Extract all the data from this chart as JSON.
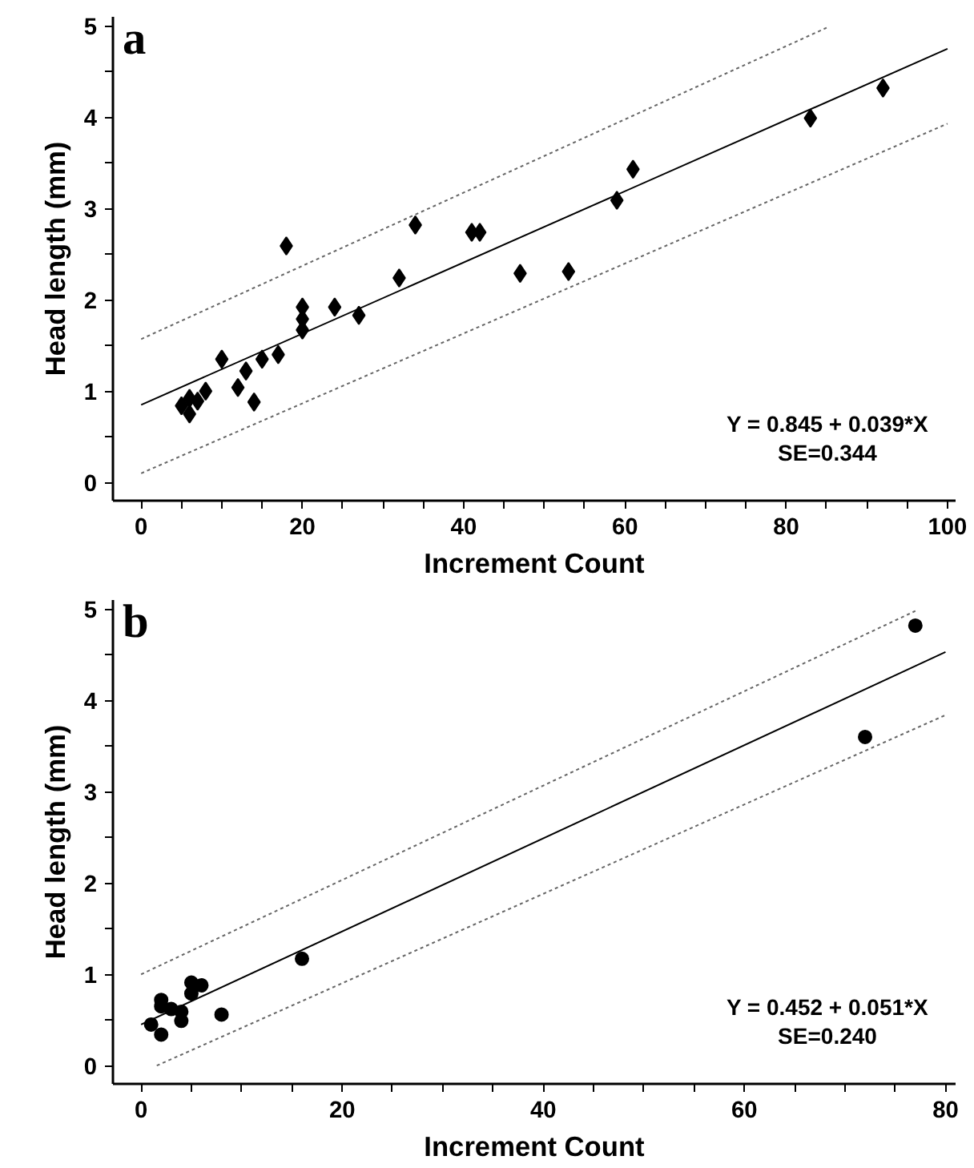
{
  "chart_data": [
    {
      "type": "scatter",
      "title": "a",
      "xlabel": "Increment Count",
      "ylabel": "Head length (mm)",
      "annotations": [
        "Y = 0.845 + 0.039*X",
        "SE=0.344"
      ],
      "xlim": [
        -3.5,
        101
      ],
      "ylim": [
        -0.2,
        5.1
      ],
      "grid": false,
      "xticks": [
        0,
        {
          "value": 5,
          "label": null
        },
        {
          "value": 10,
          "label": null
        },
        {
          "value": 15,
          "label": null
        },
        20,
        {
          "value": 25,
          "label": null
        },
        {
          "value": 30,
          "label": null
        },
        {
          "value": 35,
          "label": null
        },
        40,
        {
          "value": 45,
          "label": null
        },
        {
          "value": 50,
          "label": null
        },
        {
          "value": 55,
          "label": null
        },
        60,
        {
          "value": 65,
          "label": null
        },
        {
          "value": 70,
          "label": null
        },
        {
          "value": 75,
          "label": null
        },
        80,
        {
          "value": 85,
          "label": null
        },
        {
          "value": 90,
          "label": null
        },
        {
          "value": 95,
          "label": null
        },
        100
      ],
      "yticks": [
        0,
        {
          "value": 0.5,
          "label": null
        },
        1,
        {
          "value": 1.5,
          "label": null
        },
        2,
        {
          "value": 2.5,
          "label": null
        },
        3,
        {
          "value": 3.5,
          "label": null
        },
        4,
        {
          "value": 4.5,
          "label": null
        },
        5
      ],
      "series": [
        {
          "marker": "diamond",
          "color": "#000000",
          "x": [
            5,
            6,
            6,
            7,
            8,
            10,
            12,
            13,
            14,
            15,
            17,
            18,
            20,
            20,
            20,
            24,
            27,
            32,
            34,
            41,
            42,
            47,
            53,
            59,
            61,
            83,
            92
          ],
          "values": [
            0.84,
            0.92,
            0.75,
            0.89,
            1.0,
            1.35,
            1.04,
            1.22,
            0.88,
            1.35,
            1.4,
            2.59,
            1.92,
            1.79,
            1.67,
            1.92,
            1.83,
            2.24,
            2.82,
            2.74,
            2.74,
            2.29,
            2.31,
            3.09,
            3.43,
            3.99,
            4.32
          ]
        },
        {
          "type": "line",
          "line_style": "solid",
          "color": "#000000",
          "x": [
            0,
            100
          ],
          "values": [
            0.85,
            4.75
          ]
        },
        {
          "type": "line",
          "line_style": "dotted",
          "color": "#666666",
          "x": [
            0,
            85
          ],
          "values": [
            1.57,
            4.98
          ]
        },
        {
          "type": "line",
          "line_style": "dotted",
          "color": "#666666",
          "x": [
            0,
            100
          ],
          "values": [
            0.1,
            3.93
          ]
        }
      ]
    },
    {
      "type": "scatter",
      "title": "b",
      "xlabel": "Increment Count",
      "ylabel": "Head length (mm)",
      "annotations": [
        "Y = 0.452 + 0.051*X",
        "SE=0.240"
      ],
      "xlim": [
        -2.8,
        81
      ],
      "ylim": [
        -0.2,
        5.1
      ],
      "xticks": [
        0,
        {
          "value": 5,
          "label": null
        },
        {
          "value": 10,
          "label": null
        },
        {
          "value": 15,
          "label": null
        },
        20,
        {
          "value": 25,
          "label": null
        },
        {
          "value": 30,
          "label": null
        },
        {
          "value": 35,
          "label": null
        },
        40,
        {
          "value": 45,
          "label": null
        },
        {
          "value": 50,
          "label": null
        },
        {
          "value": 55,
          "label": null
        },
        60,
        {
          "value": 65,
          "label": null
        },
        {
          "value": 70,
          "label": null
        },
        {
          "value": 75,
          "label": null
        },
        80
      ],
      "yticks": [
        0,
        {
          "value": 0.5,
          "label": null
        },
        1,
        {
          "value": 1.5,
          "label": null
        },
        2,
        {
          "value": 2.5,
          "label": null
        },
        3,
        {
          "value": 3.5,
          "label": null
        },
        4,
        {
          "value": 4.5,
          "label": null
        },
        5
      ],
      "grid": false,
      "series": [
        {
          "marker": "circle",
          "color": "#000000",
          "x": [
            1,
            2,
            2,
            2,
            3,
            4,
            4,
            5,
            5,
            6,
            8,
            16,
            72,
            77
          ],
          "values": [
            0.45,
            0.72,
            0.65,
            0.34,
            0.62,
            0.59,
            0.49,
            0.91,
            0.79,
            0.88,
            0.56,
            1.17,
            3.6,
            4.82
          ]
        },
        {
          "type": "line",
          "line_style": "solid",
          "color": "#000000",
          "x": [
            0,
            80
          ],
          "values": [
            0.45,
            4.53
          ]
        },
        {
          "type": "line",
          "line_style": "dotted",
          "color": "#666666",
          "x": [
            0,
            77
          ],
          "values": [
            1.0,
            4.98
          ]
        },
        {
          "type": "line",
          "line_style": "dotted",
          "color": "#666666",
          "x": [
            1.56,
            80
          ],
          "values": [
            0.0,
            3.84
          ]
        }
      ]
    }
  ]
}
